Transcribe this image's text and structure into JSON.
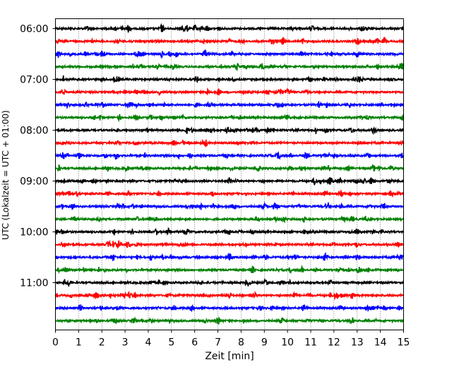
{
  "chart_data": {
    "type": "line",
    "title": "",
    "xlabel": "Zeit  [min]",
    "ylabel": "UTC (Lokalzeit = UTC + 01:00)",
    "xlim": [
      0,
      15
    ],
    "x_ticks": [
      0,
      1,
      2,
      3,
      4,
      5,
      6,
      7,
      8,
      9,
      10,
      11,
      12,
      13,
      14,
      15
    ],
    "x_tick_labels": [
      "0",
      "1",
      "2",
      "3",
      "4",
      "5",
      "6",
      "7",
      "8",
      "9",
      "10",
      "11",
      "12",
      "13",
      "14",
      "15"
    ],
    "y_tick_labels": [
      "06:00",
      "07:00",
      "08:00",
      "09:00",
      "10:00",
      "11:00"
    ],
    "grid": "vertical dotted",
    "legend": "none",
    "trace_colors": [
      "#000000",
      "#ff0000",
      "#0000ff",
      "#008000"
    ],
    "traces": [
      {
        "start": "06:00",
        "color": "#000000"
      },
      {
        "start": "06:15",
        "color": "#ff0000"
      },
      {
        "start": "06:30",
        "color": "#0000ff"
      },
      {
        "start": "06:45",
        "color": "#008000"
      },
      {
        "start": "07:00",
        "color": "#000000"
      },
      {
        "start": "07:15",
        "color": "#ff0000"
      },
      {
        "start": "07:30",
        "color": "#0000ff"
      },
      {
        "start": "07:45",
        "color": "#008000"
      },
      {
        "start": "08:00",
        "color": "#000000"
      },
      {
        "start": "08:15",
        "color": "#ff0000"
      },
      {
        "start": "08:30",
        "color": "#0000ff"
      },
      {
        "start": "08:45",
        "color": "#008000"
      },
      {
        "start": "09:00",
        "color": "#000000"
      },
      {
        "start": "09:15",
        "color": "#ff0000"
      },
      {
        "start": "09:30",
        "color": "#0000ff"
      },
      {
        "start": "09:45",
        "color": "#008000"
      },
      {
        "start": "10:00",
        "color": "#000000"
      },
      {
        "start": "10:15",
        "color": "#ff0000"
      },
      {
        "start": "10:30",
        "color": "#0000ff"
      },
      {
        "start": "10:45",
        "color": "#008000"
      },
      {
        "start": "11:00",
        "color": "#000000"
      },
      {
        "start": "11:15",
        "color": "#ff0000"
      },
      {
        "start": "11:30",
        "color": "#0000ff"
      },
      {
        "start": "11:45",
        "color": "#008000"
      }
    ]
  }
}
